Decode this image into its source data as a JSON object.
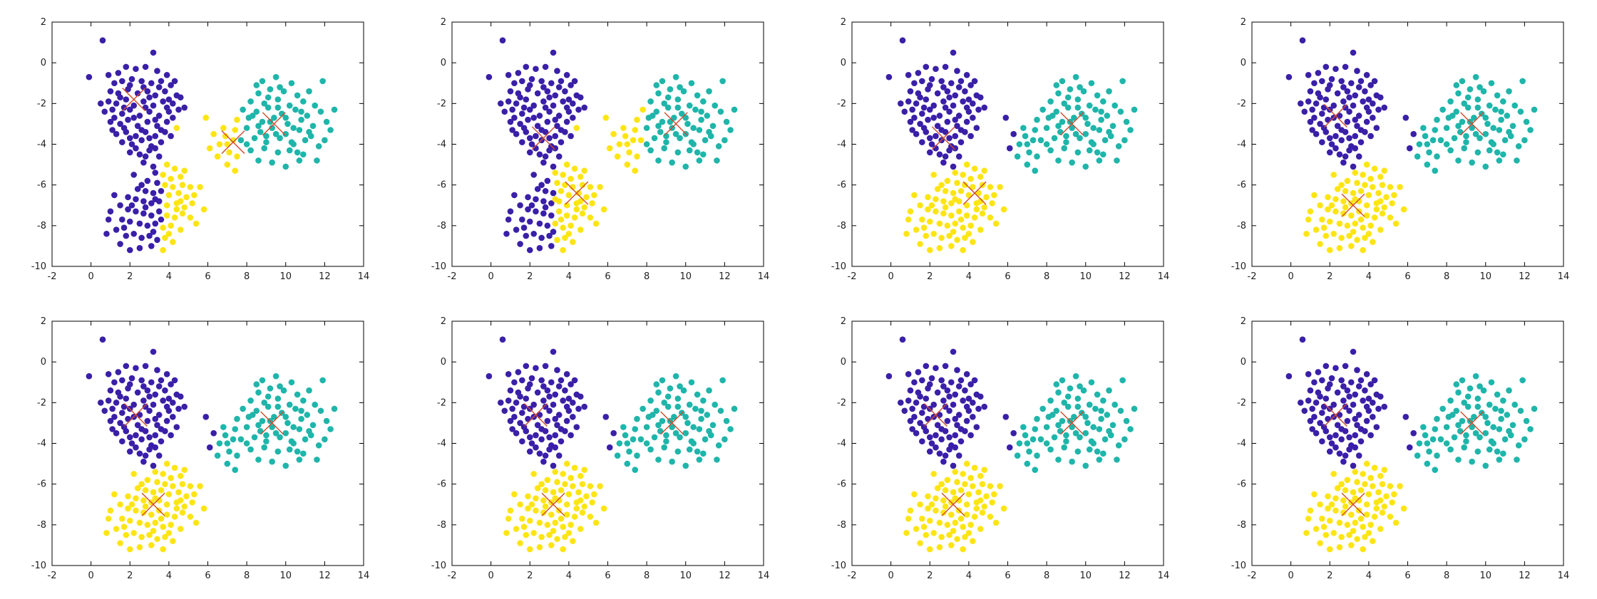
{
  "colors": {
    "c0": "#3a1fa8",
    "c1": "#1fb5aa",
    "c2": "#fde515",
    "centroid": "#d04a2c",
    "axis": "#000000"
  },
  "chart_data": [
    {
      "type": "scatter",
      "iteration": 1,
      "xlim": [
        -2,
        14
      ],
      "ylim": [
        -10,
        2
      ],
      "xticks": [
        "-2",
        "0",
        "2",
        "4",
        "6",
        "8",
        "10",
        "12",
        "14"
      ],
      "yticks": [
        "-10",
        "-8",
        "-6",
        "-4",
        "-2",
        "0",
        "2"
      ],
      "grid": false,
      "legend": "none",
      "assignment_variant": 1,
      "centroids": [
        {
          "x": 2.2,
          "y": -1.8,
          "color": "c0"
        },
        {
          "x": 9.4,
          "y": -3.0,
          "color": "c1"
        },
        {
          "x": 7.3,
          "y": -3.9,
          "color": "c2"
        }
      ]
    },
    {
      "type": "scatter",
      "iteration": 2,
      "xlim": [
        -2,
        14
      ],
      "ylim": [
        -10,
        2
      ],
      "xticks": [
        "-2",
        "0",
        "2",
        "4",
        "6",
        "8",
        "10",
        "12",
        "14"
      ],
      "yticks": [
        "-10",
        "-8",
        "-6",
        "-4",
        "-2",
        "0",
        "2"
      ],
      "grid": false,
      "legend": "none",
      "assignment_variant": 2,
      "centroids": [
        {
          "x": 2.7,
          "y": -3.7,
          "color": "c0"
        },
        {
          "x": 9.5,
          "y": -3.0,
          "color": "c1"
        },
        {
          "x": 4.4,
          "y": -6.4,
          "color": "c2"
        }
      ]
    },
    {
      "type": "scatter",
      "iteration": 3,
      "xlim": [
        -2,
        14
      ],
      "ylim": [
        -10,
        2
      ],
      "xticks": [
        "-2",
        "0",
        "2",
        "4",
        "6",
        "8",
        "10",
        "12",
        "14"
      ],
      "yticks": [
        "-10",
        "-8",
        "-6",
        "-4",
        "-2",
        "0",
        "2"
      ],
      "grid": false,
      "legend": "none",
      "assignment_variant": 3,
      "centroids": [
        {
          "x": 2.7,
          "y": -3.7,
          "color": "c0"
        },
        {
          "x": 9.3,
          "y": -3.0,
          "color": "c1"
        },
        {
          "x": 4.3,
          "y": -6.4,
          "color": "c2"
        }
      ]
    },
    {
      "type": "scatter",
      "iteration": 4,
      "xlim": [
        -2,
        14
      ],
      "ylim": [
        -10,
        2
      ],
      "xticks": [
        "-2",
        "0",
        "2",
        "4",
        "6",
        "8",
        "10",
        "12",
        "14"
      ],
      "yticks": [
        "-10",
        "-8",
        "-6",
        "-4",
        "-2",
        "0",
        "2"
      ],
      "grid": false,
      "legend": "none",
      "assignment_variant": 4,
      "centroids": [
        {
          "x": 2.3,
          "y": -2.6,
          "color": "c0"
        },
        {
          "x": 9.3,
          "y": -3.0,
          "color": "c1"
        },
        {
          "x": 3.2,
          "y": -7.0,
          "color": "c2"
        }
      ]
    },
    {
      "type": "scatter",
      "iteration": 5,
      "xlim": [
        -2,
        14
      ],
      "ylim": [
        -10,
        2
      ],
      "xticks": [
        "-2",
        "0",
        "2",
        "4",
        "6",
        "8",
        "10",
        "12",
        "14"
      ],
      "yticks": [
        "-10",
        "-8",
        "-6",
        "-4",
        "-2",
        "0",
        "2"
      ],
      "grid": false,
      "legend": "none",
      "assignment_variant": 4,
      "centroids": [
        {
          "x": 2.3,
          "y": -2.6,
          "color": "c0"
        },
        {
          "x": 9.3,
          "y": -3.0,
          "color": "c1"
        },
        {
          "x": 3.2,
          "y": -7.0,
          "color": "c2"
        }
      ]
    },
    {
      "type": "scatter",
      "iteration": 6,
      "xlim": [
        -2,
        14
      ],
      "ylim": [
        -10,
        2
      ],
      "xticks": [
        "-2",
        "0",
        "2",
        "4",
        "6",
        "8",
        "10",
        "12",
        "14"
      ],
      "yticks": [
        "-10",
        "-8",
        "-6",
        "-4",
        "-2",
        "0",
        "2"
      ],
      "grid": false,
      "legend": "none",
      "assignment_variant": 4,
      "centroids": [
        {
          "x": 2.3,
          "y": -2.6,
          "color": "c0"
        },
        {
          "x": 9.3,
          "y": -3.0,
          "color": "c1"
        },
        {
          "x": 3.2,
          "y": -7.0,
          "color": "c2"
        }
      ]
    },
    {
      "type": "scatter",
      "iteration": 7,
      "xlim": [
        -2,
        14
      ],
      "ylim": [
        -10,
        2
      ],
      "xticks": [
        "-2",
        "0",
        "2",
        "4",
        "6",
        "8",
        "10",
        "12",
        "14"
      ],
      "yticks": [
        "-10",
        "-8",
        "-6",
        "-4",
        "-2",
        "0",
        "2"
      ],
      "grid": false,
      "legend": "none",
      "assignment_variant": 4,
      "centroids": [
        {
          "x": 2.3,
          "y": -2.6,
          "color": "c0"
        },
        {
          "x": 9.3,
          "y": -3.0,
          "color": "c1"
        },
        {
          "x": 3.2,
          "y": -7.0,
          "color": "c2"
        }
      ]
    },
    {
      "type": "scatter",
      "iteration": 8,
      "xlim": [
        -2,
        14
      ],
      "ylim": [
        -10,
        2
      ],
      "xticks": [
        "-2",
        "0",
        "2",
        "4",
        "6",
        "8",
        "10",
        "12",
        "14"
      ],
      "yticks": [
        "-10",
        "-8",
        "-6",
        "-4",
        "-2",
        "0",
        "2"
      ],
      "grid": false,
      "legend": "none",
      "assignment_variant": 4,
      "centroids": [
        {
          "x": 2.3,
          "y": -2.6,
          "color": "c0"
        },
        {
          "x": 9.3,
          "y": -3.0,
          "color": "c1"
        },
        {
          "x": 3.2,
          "y": -7.0,
          "color": "c2"
        }
      ]
    }
  ],
  "points": {
    "blob_a": [
      [
        -0.1,
        -0.7
      ],
      [
        0.6,
        1.1
      ],
      [
        3.2,
        0.5
      ],
      [
        0.9,
        -0.6
      ],
      [
        1.8,
        -0.2
      ],
      [
        2.3,
        -0.3
      ],
      [
        2.8,
        -0.2
      ],
      [
        3.4,
        -0.4
      ],
      [
        3.9,
        -0.6
      ],
      [
        1.2,
        -1.0
      ],
      [
        1.6,
        -0.9
      ],
      [
        2.1,
        -0.8
      ],
      [
        2.6,
        -0.9
      ],
      [
        3.1,
        -1.0
      ],
      [
        3.6,
        -0.9
      ],
      [
        4.1,
        -1.1
      ],
      [
        1.0,
        -1.4
      ],
      [
        1.4,
        -1.5
      ],
      [
        1.9,
        -1.3
      ],
      [
        2.4,
        -1.5
      ],
      [
        2.9,
        -1.4
      ],
      [
        3.3,
        -1.6
      ],
      [
        3.8,
        -1.4
      ],
      [
        4.4,
        -1.6
      ],
      [
        0.9,
        -1.9
      ],
      [
        1.3,
        -2.0
      ],
      [
        1.8,
        -1.8
      ],
      [
        2.2,
        -2.1
      ],
      [
        2.7,
        -1.9
      ],
      [
        3.2,
        -2.1
      ],
      [
        3.7,
        -1.9
      ],
      [
        4.2,
        -2.0
      ],
      [
        4.6,
        -1.7
      ],
      [
        0.7,
        -2.4
      ],
      [
        1.1,
        -2.3
      ],
      [
        1.6,
        -2.5
      ],
      [
        2.0,
        -2.3
      ],
      [
        2.5,
        -2.6
      ],
      [
        3.0,
        -2.4
      ],
      [
        3.5,
        -2.6
      ],
      [
        4.0,
        -2.4
      ],
      [
        4.5,
        -2.3
      ],
      [
        1.0,
        -2.9
      ],
      [
        1.5,
        -3.0
      ],
      [
        1.9,
        -2.8
      ],
      [
        2.4,
        -3.1
      ],
      [
        2.9,
        -2.9
      ],
      [
        3.4,
        -3.1
      ],
      [
        3.9,
        -2.9
      ],
      [
        4.4,
        -3.2
      ],
      [
        1.3,
        -3.5
      ],
      [
        1.8,
        -3.4
      ],
      [
        2.3,
        -3.6
      ],
      [
        2.8,
        -3.4
      ],
      [
        3.3,
        -3.6
      ],
      [
        3.8,
        -3.4
      ],
      [
        1.6,
        -3.9
      ],
      [
        2.1,
        -4.0
      ],
      [
        2.6,
        -3.8
      ],
      [
        3.1,
        -4.1
      ],
      [
        3.6,
        -3.9
      ],
      [
        2.0,
        -4.4
      ],
      [
        2.5,
        -4.5
      ],
      [
        3.0,
        -4.3
      ],
      [
        3.5,
        -4.6
      ],
      [
        2.7,
        -4.9
      ],
      [
        3.2,
        -5.1
      ],
      [
        5.9,
        -2.7
      ],
      [
        2.0,
        -1.1
      ],
      [
        2.7,
        -1.2
      ],
      [
        3.5,
        -1.2
      ],
      [
        1.5,
        -1.7
      ],
      [
        3.0,
        -1.7
      ],
      [
        4.0,
        -1.8
      ],
      [
        1.7,
        -2.2
      ],
      [
        2.8,
        -2.2
      ],
      [
        3.9,
        -2.2
      ],
      [
        1.2,
        -2.7
      ],
      [
        2.2,
        -2.7
      ],
      [
        3.3,
        -2.8
      ],
      [
        4.2,
        -2.7
      ],
      [
        1.7,
        -3.2
      ],
      [
        2.6,
        -3.3
      ],
      [
        3.6,
        -3.3
      ],
      [
        2.0,
        -3.7
      ],
      [
        3.0,
        -3.7
      ],
      [
        2.3,
        -4.2
      ],
      [
        3.3,
        -4.2
      ],
      [
        2.8,
        -4.6
      ],
      [
        0.5,
        -2.0
      ],
      [
        4.8,
        -2.2
      ],
      [
        1.4,
        -0.5
      ],
      [
        4.3,
        -0.9
      ],
      [
        1.1,
        -3.3
      ],
      [
        4.1,
        -3.6
      ]
    ],
    "blob_b": [
      [
        8.8,
        -0.9
      ],
      [
        9.5,
        -0.7
      ],
      [
        10.3,
        -1.0
      ],
      [
        11.9,
        -0.9
      ],
      [
        8.6,
        -1.5
      ],
      [
        9.2,
        -1.3
      ],
      [
        9.9,
        -1.4
      ],
      [
        10.6,
        -1.6
      ],
      [
        11.2,
        -1.4
      ],
      [
        8.2,
        -1.9
      ],
      [
        8.9,
        -2.0
      ],
      [
        9.6,
        -1.8
      ],
      [
        10.2,
        -2.1
      ],
      [
        10.9,
        -1.9
      ],
      [
        11.5,
        -2.1
      ],
      [
        7.8,
        -2.3
      ],
      [
        8.5,
        -2.4
      ],
      [
        9.1,
        -2.2
      ],
      [
        9.8,
        -2.5
      ],
      [
        10.5,
        -2.3
      ],
      [
        11.1,
        -2.6
      ],
      [
        11.8,
        -2.4
      ],
      [
        12.5,
        -2.3
      ],
      [
        7.5,
        -2.8
      ],
      [
        8.1,
        -2.7
      ],
      [
        8.8,
        -2.9
      ],
      [
        9.4,
        -2.7
      ],
      [
        10.1,
        -3.0
      ],
      [
        10.8,
        -2.8
      ],
      [
        11.4,
        -3.1
      ],
      [
        12.1,
        -2.9
      ],
      [
        7.4,
        -3.3
      ],
      [
        8.0,
        -3.2
      ],
      [
        8.7,
        -3.4
      ],
      [
        9.3,
        -3.2
      ],
      [
        10.0,
        -3.5
      ],
      [
        10.7,
        -3.3
      ],
      [
        11.3,
        -3.6
      ],
      [
        12.3,
        -3.3
      ],
      [
        7.7,
        -3.8
      ],
      [
        8.4,
        -3.7
      ],
      [
        9.0,
        -3.9
      ],
      [
        9.7,
        -3.7
      ],
      [
        10.4,
        -4.0
      ],
      [
        11.0,
        -3.8
      ],
      [
        11.7,
        -4.1
      ],
      [
        7.0,
        -4.0
      ],
      [
        8.2,
        -4.3
      ],
      [
        8.9,
        -4.2
      ],
      [
        9.6,
        -4.4
      ],
      [
        10.2,
        -4.3
      ],
      [
        10.9,
        -4.5
      ],
      [
        11.6,
        -4.8
      ],
      [
        8.6,
        -4.8
      ],
      [
        9.3,
        -4.9
      ],
      [
        10.0,
        -5.1
      ],
      [
        10.7,
        -4.8
      ],
      [
        7.4,
        -5.3
      ],
      [
        9.1,
        -1.7
      ],
      [
        9.6,
        -2.2
      ],
      [
        10.0,
        -2.7
      ],
      [
        9.2,
        -2.9
      ],
      [
        10.4,
        -3.2
      ],
      [
        9.5,
        -3.5
      ],
      [
        8.6,
        -3.1
      ],
      [
        10.3,
        -3.9
      ],
      [
        9.0,
        -3.6
      ],
      [
        8.3,
        -2.6
      ],
      [
        10.8,
        -2.4
      ],
      [
        9.7,
        -1.2
      ],
      [
        11.2,
        -3.4
      ],
      [
        8.0,
        -4.0
      ],
      [
        12.0,
        -3.8
      ],
      [
        8.5,
        -1.1
      ],
      [
        10.6,
        -4.4
      ]
    ],
    "blob_c": [
      [
        3.9,
        -5.0
      ],
      [
        4.3,
        -5.2
      ],
      [
        3.3,
        -5.4
      ],
      [
        3.7,
        -5.5
      ],
      [
        4.1,
        -5.7
      ],
      [
        4.6,
        -5.6
      ],
      [
        2.9,
        -5.8
      ],
      [
        3.4,
        -5.9
      ],
      [
        3.8,
        -6.0
      ],
      [
        4.2,
        -6.1
      ],
      [
        4.7,
        -6.0
      ],
      [
        5.1,
        -6.1
      ],
      [
        2.4,
        -6.2
      ],
      [
        2.8,
        -6.3
      ],
      [
        3.2,
        -6.4
      ],
      [
        3.6,
        -6.3
      ],
      [
        4.0,
        -6.5
      ],
      [
        4.5,
        -6.4
      ],
      [
        4.9,
        -6.6
      ],
      [
        5.3,
        -6.5
      ],
      [
        1.9,
        -6.6
      ],
      [
        2.3,
        -6.7
      ],
      [
        2.7,
        -6.8
      ],
      [
        3.1,
        -6.9
      ],
      [
        3.5,
        -6.8
      ],
      [
        3.9,
        -7.0
      ],
      [
        4.4,
        -6.9
      ],
      [
        4.8,
        -7.1
      ],
      [
        5.2,
        -6.9
      ],
      [
        1.5,
        -7.0
      ],
      [
        1.9,
        -7.2
      ],
      [
        2.3,
        -7.3
      ],
      [
        2.7,
        -7.4
      ],
      [
        3.1,
        -7.5
      ],
      [
        3.5,
        -7.3
      ],
      [
        3.9,
        -7.5
      ],
      [
        4.3,
        -7.6
      ],
      [
        4.7,
        -7.4
      ],
      [
        5.1,
        -7.6
      ],
      [
        1.0,
        -7.3
      ],
      [
        1.6,
        -7.7
      ],
      [
        2.0,
        -7.8
      ],
      [
        2.5,
        -7.9
      ],
      [
        2.9,
        -8.0
      ],
      [
        3.3,
        -7.9
      ],
      [
        3.7,
        -8.1
      ],
      [
        4.1,
        -8.0
      ],
      [
        4.6,
        -8.2
      ],
      [
        5.4,
        -7.9
      ],
      [
        0.8,
        -8.4
      ],
      [
        1.3,
        -8.2
      ],
      [
        1.8,
        -8.5
      ],
      [
        2.2,
        -8.4
      ],
      [
        2.6,
        -8.6
      ],
      [
        3.0,
        -8.5
      ],
      [
        3.4,
        -8.7
      ],
      [
        3.8,
        -8.6
      ],
      [
        4.2,
        -8.8
      ],
      [
        1.5,
        -8.9
      ],
      [
        2.0,
        -9.2
      ],
      [
        2.5,
        -9.1
      ],
      [
        3.1,
        -9.0
      ],
      [
        3.7,
        -9.2
      ],
      [
        2.2,
        -5.5
      ],
      [
        4.8,
        -5.3
      ],
      [
        1.2,
        -6.5
      ],
      [
        5.6,
        -6.1
      ],
      [
        0.9,
        -7.7
      ],
      [
        5.8,
        -7.2
      ],
      [
        2.6,
        -6.0
      ],
      [
        3.3,
        -6.7
      ],
      [
        4.6,
        -6.8
      ],
      [
        2.1,
        -7.0
      ],
      [
        3.6,
        -7.7
      ],
      [
        4.4,
        -7.2
      ],
      [
        2.8,
        -7.1
      ],
      [
        1.7,
        -8.1
      ],
      [
        3.2,
        -8.3
      ],
      [
        4.0,
        -8.4
      ]
    ],
    "bridge": [
      [
        6.3,
        -3.5
      ],
      [
        6.6,
        -4.0
      ],
      [
        6.9,
        -3.6
      ],
      [
        7.1,
        -4.4
      ],
      [
        6.5,
        -4.6
      ],
      [
        7.3,
        -3.8
      ],
      [
        7.5,
        -4.6
      ],
      [
        7.0,
        -5.0
      ],
      [
        6.1,
        -4.2
      ],
      [
        6.8,
        -3.2
      ]
    ]
  }
}
